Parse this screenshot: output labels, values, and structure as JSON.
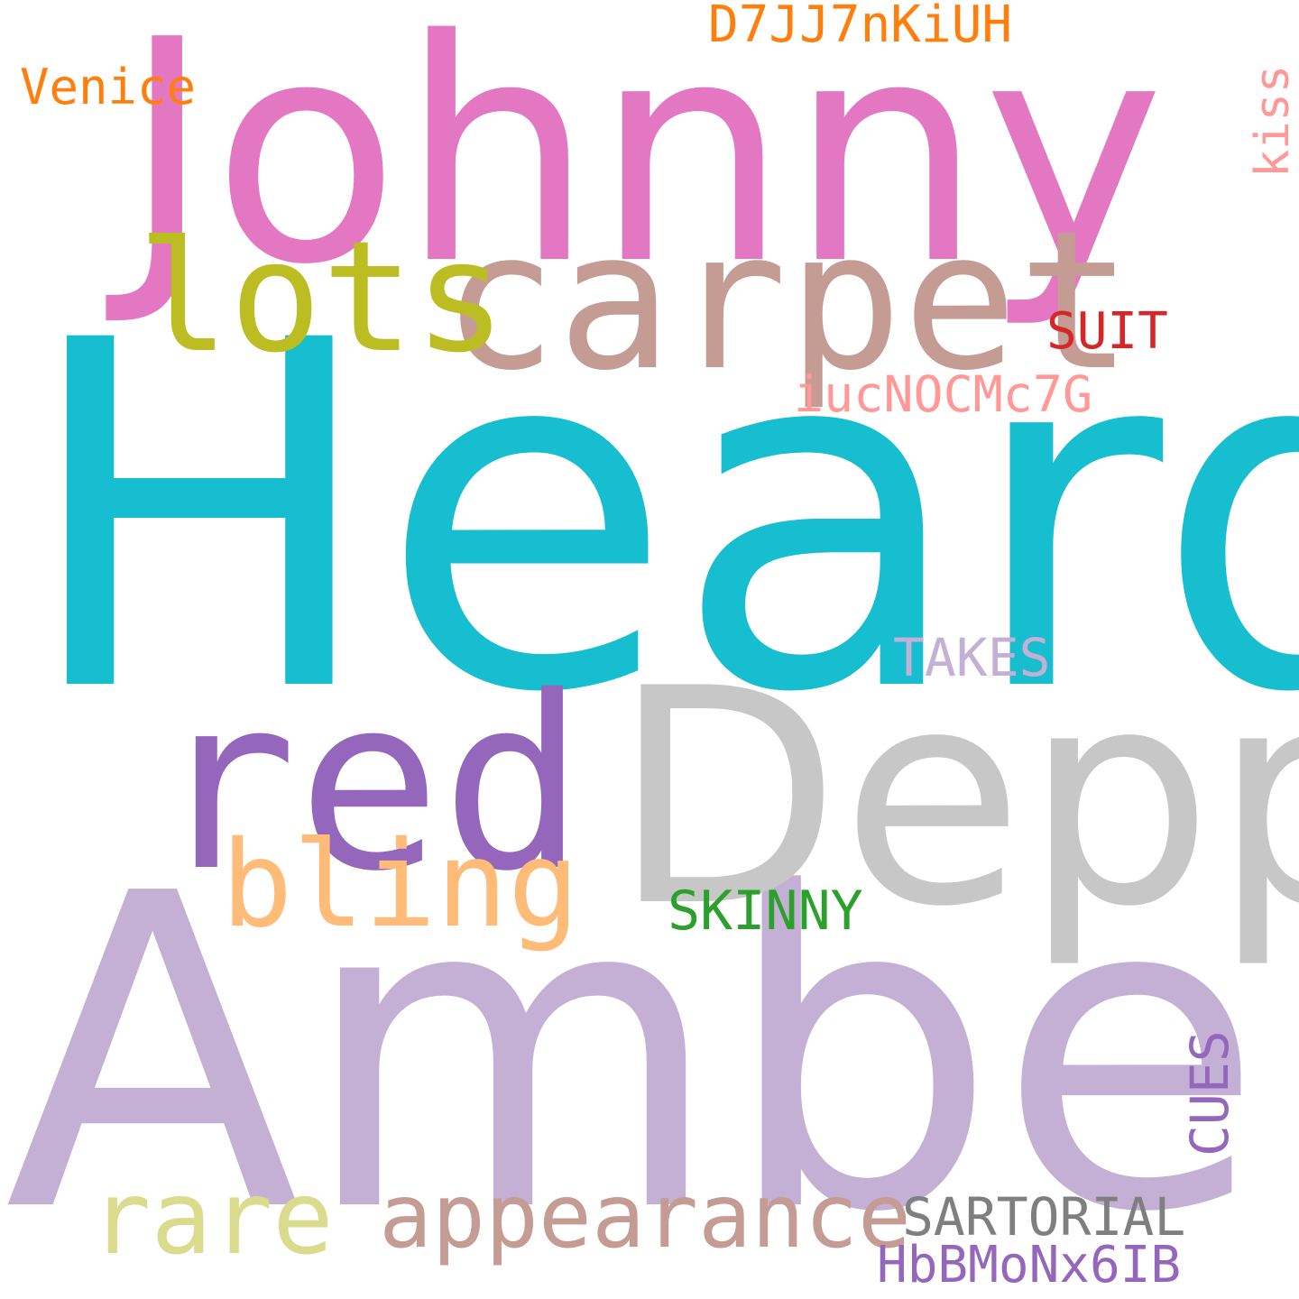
{
  "words": {
    "johnny": {
      "text": "Johnny",
      "color": "#e377c2"
    },
    "heard": {
      "text": "Heard",
      "color": "#17becf"
    },
    "amber": {
      "text": "Amber",
      "color": "#c5b0d5"
    },
    "depp": {
      "text": "Depp",
      "color": "#c7c7c7"
    },
    "red": {
      "text": "red",
      "color": "#9467bd"
    },
    "carpet": {
      "text": "carpet",
      "color": "#c49c94"
    },
    "lots": {
      "text": "lots",
      "color": "#bcbd22"
    },
    "bling": {
      "text": "bling",
      "color": "#ffbb78"
    },
    "rare": {
      "text": "rare",
      "color": "#dbdb8d"
    },
    "appearance": {
      "text": "appearance",
      "color": "#c49c94"
    },
    "sartorial": {
      "text": "SARTORIAL",
      "color": "#7f7f7f"
    },
    "hbbmonx6ib": {
      "text": "HbBMoNx6IB",
      "color": "#9467bd"
    },
    "cues": {
      "text": "CUES",
      "color": "#9467bd"
    },
    "skinny": {
      "text": "SKINNY",
      "color": "#2ca02c"
    },
    "takes": {
      "text": "TAKES",
      "color": "#c5b0d5"
    },
    "iucnocmc7g": {
      "text": "iucNOCMc7G",
      "color": "#ff9896"
    },
    "suit": {
      "text": "SUIT",
      "color": "#d62728"
    },
    "kiss": {
      "text": "kiss",
      "color": "#ff9896"
    },
    "d7jj7nkiuh": {
      "text": "D7JJ7nKiUH",
      "color": "#ff7f0e"
    },
    "venice": {
      "text": "Venice",
      "color": "#ff7f0e"
    }
  }
}
